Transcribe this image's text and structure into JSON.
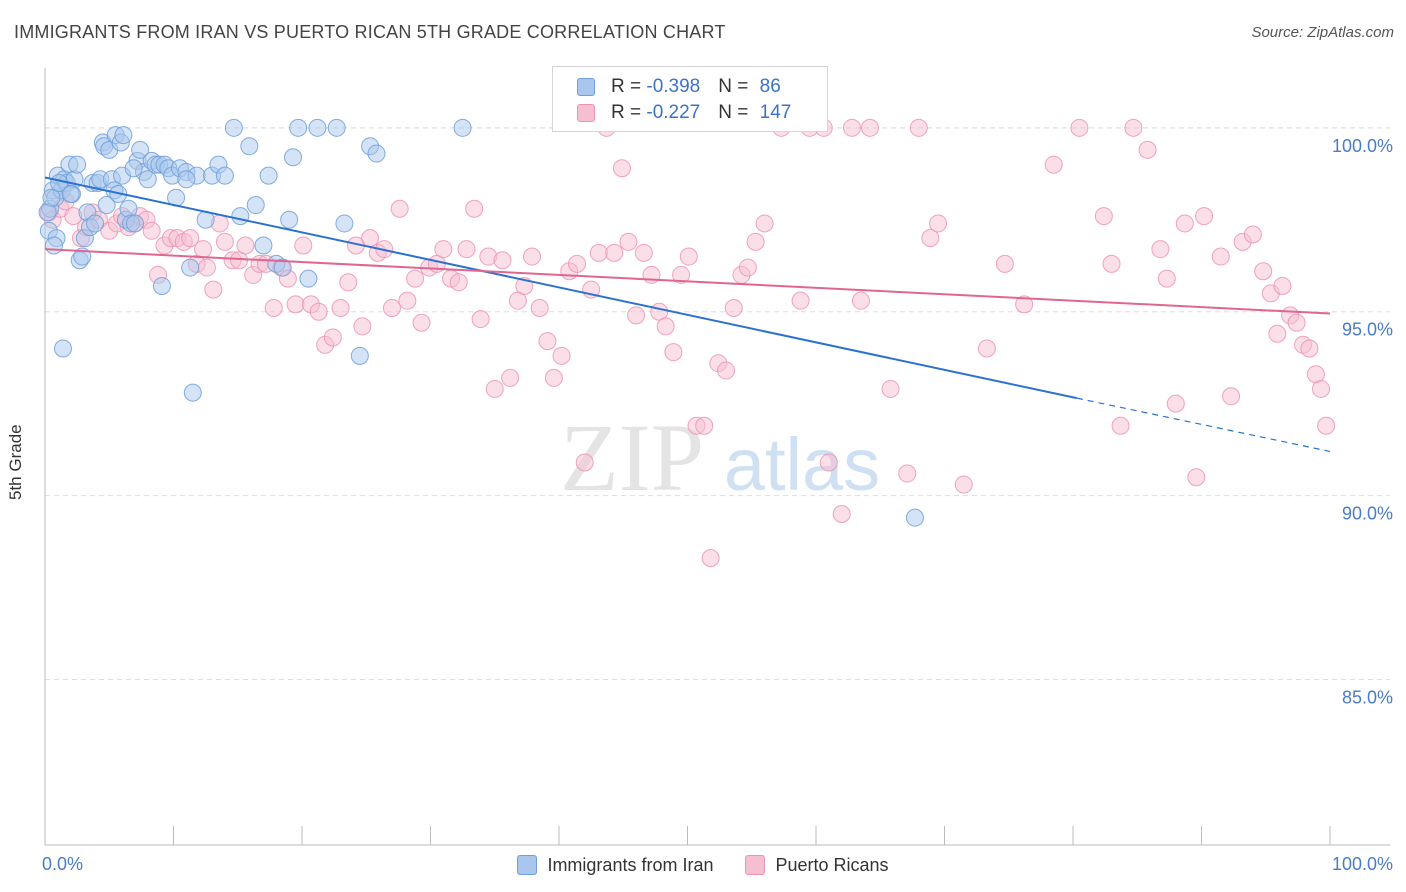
{
  "title": "IMMIGRANTS FROM IRAN VS PUERTO RICAN 5TH GRADE CORRELATION CHART",
  "source": "Source: ZipAtlas.com",
  "watermark": {
    "zip": "ZIP",
    "atlas": "atlas"
  },
  "legend_top": {
    "rows": [
      {
        "r_label": "R = ",
        "r_value": "-0.398",
        "n_label": "N = ",
        "n_value": "86"
      },
      {
        "r_label": "R = ",
        "r_value": "-0.227",
        "n_label": "N = ",
        "n_value": "147"
      }
    ]
  },
  "colors": {
    "blue_fill": "#a9c7ec",
    "blue_stroke": "#6f9fdc",
    "blue_line": "#2b72d0",
    "pink_fill": "#f6bfd1",
    "pink_stroke": "#ee93b2",
    "pink_line": "#e0668f",
    "tick_label": "#4a7cc7",
    "grid": "#dddddd"
  },
  "chart_data": {
    "type": "scatter",
    "title": "IMMIGRANTS FROM IRAN VS PUERTO RICAN 5TH GRADE CORRELATION CHART",
    "xlabel": "",
    "ylabel": "5th Grade",
    "xlim": [
      0,
      100
    ],
    "ylim": [
      80.5,
      101.3
    ],
    "x_tick_labels": [
      "0.0%",
      "100.0%"
    ],
    "y_ticks": [
      85,
      90,
      95,
      100
    ],
    "y_tick_labels": [
      "85.0%",
      "90.0%",
      "95.0%",
      "100.0%"
    ],
    "grid": true,
    "legend_placement": "bottom",
    "series": [
      {
        "name": "Immigrants from Iran",
        "trend": {
          "x": [
            0,
            80.3
          ],
          "y": [
            98.65,
            92.65
          ],
          "dashed_to_x": 100,
          "dashed_to_y": 91.2
        },
        "points": [
          [
            0.3,
            97.2
          ],
          [
            0.4,
            97.8
          ],
          [
            0.6,
            98.3
          ],
          [
            0.8,
            98.1
          ],
          [
            0.9,
            97.0
          ],
          [
            1.0,
            98.7
          ],
          [
            1.3,
            98.3
          ],
          [
            1.5,
            98.6
          ],
          [
            1.7,
            98.5
          ],
          [
            1.9,
            99.0
          ],
          [
            2.1,
            98.2
          ],
          [
            2.3,
            98.6
          ],
          [
            2.5,
            99.0
          ],
          [
            2.7,
            96.4
          ],
          [
            2.9,
            96.5
          ],
          [
            3.1,
            97.0
          ],
          [
            3.3,
            97.7
          ],
          [
            3.5,
            97.3
          ],
          [
            3.7,
            98.5
          ],
          [
            3.9,
            97.4
          ],
          [
            4.1,
            98.5
          ],
          [
            4.3,
            98.6
          ],
          [
            4.5,
            99.6
          ],
          [
            4.6,
            99.5
          ],
          [
            4.8,
            97.9
          ],
          [
            5.0,
            99.4
          ],
          [
            5.2,
            98.6
          ],
          [
            5.4,
            98.3
          ],
          [
            5.5,
            99.8
          ],
          [
            5.7,
            98.2
          ],
          [
            5.9,
            99.6
          ],
          [
            6.0,
            98.7
          ],
          [
            6.1,
            99.8
          ],
          [
            6.3,
            97.5
          ],
          [
            6.5,
            97.8
          ],
          [
            6.7,
            97.4
          ],
          [
            7.0,
            97.4
          ],
          [
            7.2,
            99.1
          ],
          [
            7.4,
            99.4
          ],
          [
            7.7,
            98.8
          ],
          [
            8.0,
            98.6
          ],
          [
            8.3,
            99.1
          ],
          [
            8.6,
            99.0
          ],
          [
            8.9,
            99.0
          ],
          [
            9.1,
            95.7
          ],
          [
            9.3,
            99.0
          ],
          [
            9.6,
            98.9
          ],
          [
            9.9,
            98.7
          ],
          [
            10.2,
            98.1
          ],
          [
            10.5,
            98.9
          ],
          [
            11.0,
            98.8
          ],
          [
            11.3,
            96.2
          ],
          [
            11.8,
            98.7
          ],
          [
            12.5,
            97.5
          ],
          [
            13.0,
            98.7
          ],
          [
            13.5,
            99.0
          ],
          [
            14.0,
            98.7
          ],
          [
            14.7,
            100.0
          ],
          [
            15.2,
            97.6
          ],
          [
            15.9,
            99.5
          ],
          [
            16.4,
            97.9
          ],
          [
            17.0,
            96.8
          ],
          [
            17.4,
            98.7
          ],
          [
            18.0,
            96.3
          ],
          [
            18.5,
            96.2
          ],
          [
            19.0,
            97.5
          ],
          [
            19.3,
            99.2
          ],
          [
            19.7,
            100.0
          ],
          [
            20.5,
            95.9
          ],
          [
            21.2,
            100.0
          ],
          [
            22.7,
            100.0
          ],
          [
            23.3,
            97.4
          ],
          [
            24.5,
            93.8
          ],
          [
            25.3,
            99.5
          ],
          [
            25.8,
            99.3
          ],
          [
            32.5,
            100.0
          ],
          [
            0.2,
            97.7
          ],
          [
            0.5,
            98.1
          ],
          [
            0.7,
            96.8
          ],
          [
            1.1,
            98.5
          ],
          [
            1.4,
            94.0
          ],
          [
            2.0,
            98.2
          ],
          [
            6.9,
            98.9
          ],
          [
            11.0,
            98.6
          ],
          [
            11.5,
            92.8
          ],
          [
            67.7,
            89.4
          ]
        ]
      },
      {
        "name": "Puerto Ricans",
        "trend": {
          "x": [
            0,
            100
          ],
          "y": [
            96.7,
            94.95
          ]
        },
        "points": [
          [
            0.3,
            97.7
          ],
          [
            0.6,
            97.5
          ],
          [
            1.2,
            97.8
          ],
          [
            1.6,
            98.0
          ],
          [
            2.2,
            97.6
          ],
          [
            2.8,
            97.0
          ],
          [
            3.2,
            97.3
          ],
          [
            3.7,
            97.7
          ],
          [
            4.2,
            97.5
          ],
          [
            5.0,
            97.2
          ],
          [
            5.6,
            97.4
          ],
          [
            6.0,
            97.6
          ],
          [
            6.5,
            97.3
          ],
          [
            7.0,
            97.4
          ],
          [
            7.4,
            97.6
          ],
          [
            7.9,
            97.5
          ],
          [
            8.3,
            97.2
          ],
          [
            8.8,
            96.0
          ],
          [
            9.3,
            96.8
          ],
          [
            9.8,
            97.0
          ],
          [
            10.3,
            97.0
          ],
          [
            10.8,
            96.9
          ],
          [
            11.3,
            97.0
          ],
          [
            11.8,
            96.3
          ],
          [
            12.3,
            96.7
          ],
          [
            12.6,
            96.2
          ],
          [
            13.1,
            95.6
          ],
          [
            13.6,
            97.4
          ],
          [
            14.0,
            96.9
          ],
          [
            14.6,
            96.4
          ],
          [
            15.1,
            96.4
          ],
          [
            15.6,
            96.8
          ],
          [
            16.2,
            96.0
          ],
          [
            16.7,
            96.3
          ],
          [
            17.2,
            96.3
          ],
          [
            17.8,
            95.1
          ],
          [
            18.4,
            96.2
          ],
          [
            18.9,
            95.9
          ],
          [
            19.5,
            95.2
          ],
          [
            20.1,
            96.8
          ],
          [
            20.7,
            95.2
          ],
          [
            21.3,
            95.0
          ],
          [
            21.8,
            94.1
          ],
          [
            22.4,
            94.3
          ],
          [
            23.0,
            95.1
          ],
          [
            23.6,
            95.8
          ],
          [
            24.2,
            96.8
          ],
          [
            24.7,
            94.6
          ],
          [
            25.3,
            97.0
          ],
          [
            25.9,
            96.6
          ],
          [
            26.4,
            96.7
          ],
          [
            27.0,
            95.1
          ],
          [
            27.6,
            97.8
          ],
          [
            28.2,
            95.3
          ],
          [
            28.8,
            95.9
          ],
          [
            29.3,
            94.7
          ],
          [
            29.9,
            96.2
          ],
          [
            30.5,
            96.3
          ],
          [
            31.0,
            96.7
          ],
          [
            31.6,
            95.9
          ],
          [
            32.2,
            95.8
          ],
          [
            32.8,
            96.7
          ],
          [
            33.4,
            97.8
          ],
          [
            33.9,
            94.8
          ],
          [
            34.5,
            96.5
          ],
          [
            35.0,
            92.9
          ],
          [
            35.6,
            96.4
          ],
          [
            36.2,
            93.2
          ],
          [
            36.8,
            95.3
          ],
          [
            37.3,
            95.7
          ],
          [
            37.9,
            96.5
          ],
          [
            38.5,
            95.1
          ],
          [
            39.1,
            94.2
          ],
          [
            39.6,
            93.2
          ],
          [
            40.2,
            93.8
          ],
          [
            40.8,
            96.1
          ],
          [
            41.4,
            96.3
          ],
          [
            42.0,
            90.9
          ],
          [
            42.5,
            95.6
          ],
          [
            43.1,
            96.6
          ],
          [
            43.7,
            100.0
          ],
          [
            44.3,
            96.6
          ],
          [
            44.9,
            98.9
          ],
          [
            45.4,
            96.9
          ],
          [
            46.0,
            94.9
          ],
          [
            46.6,
            96.6
          ],
          [
            47.2,
            96.0
          ],
          [
            47.8,
            95.0
          ],
          [
            48.3,
            94.6
          ],
          [
            48.9,
            93.9
          ],
          [
            49.5,
            96.0
          ],
          [
            50.1,
            96.5
          ],
          [
            50.7,
            91.9
          ],
          [
            51.3,
            91.9
          ],
          [
            51.8,
            88.3
          ],
          [
            52.4,
            93.6
          ],
          [
            53.0,
            93.4
          ],
          [
            53.6,
            95.1
          ],
          [
            54.2,
            96.0
          ],
          [
            54.7,
            96.2
          ],
          [
            55.3,
            96.9
          ],
          [
            56.0,
            97.4
          ],
          [
            57.3,
            100.0
          ],
          [
            58.8,
            95.3
          ],
          [
            59.5,
            100.0
          ],
          [
            60.6,
            100.0
          ],
          [
            61.0,
            90.9
          ],
          [
            62.0,
            89.5
          ],
          [
            62.8,
            100.0
          ],
          [
            63.5,
            95.3
          ],
          [
            64.2,
            100.0
          ],
          [
            65.8,
            92.9
          ],
          [
            67.1,
            90.6
          ],
          [
            68.0,
            100.0
          ],
          [
            68.9,
            97.0
          ],
          [
            69.5,
            97.4
          ],
          [
            71.5,
            90.3
          ],
          [
            73.3,
            94.0
          ],
          [
            74.7,
            96.3
          ],
          [
            76.2,
            95.2
          ],
          [
            78.5,
            99.0
          ],
          [
            80.5,
            100.0
          ],
          [
            82.4,
            97.6
          ],
          [
            83.0,
            96.3
          ],
          [
            83.7,
            91.9
          ],
          [
            84.7,
            100.0
          ],
          [
            85.8,
            99.4
          ],
          [
            86.8,
            96.7
          ],
          [
            87.3,
            95.9
          ],
          [
            88.0,
            92.5
          ],
          [
            88.7,
            97.4
          ],
          [
            89.6,
            90.5
          ],
          [
            90.2,
            97.6
          ],
          [
            91.5,
            96.5
          ],
          [
            92.3,
            92.7
          ],
          [
            93.2,
            96.9
          ],
          [
            94.0,
            97.1
          ],
          [
            94.8,
            96.1
          ],
          [
            95.4,
            95.5
          ],
          [
            95.9,
            94.4
          ],
          [
            96.3,
            95.7
          ],
          [
            96.9,
            94.9
          ],
          [
            97.4,
            94.7
          ],
          [
            97.9,
            94.1
          ],
          [
            98.4,
            94.0
          ],
          [
            98.9,
            93.3
          ],
          [
            99.3,
            92.9
          ],
          [
            99.7,
            91.9
          ]
        ]
      }
    ]
  },
  "legend_bottom": [
    "Immigrants from Iran",
    "Puerto Ricans"
  ]
}
